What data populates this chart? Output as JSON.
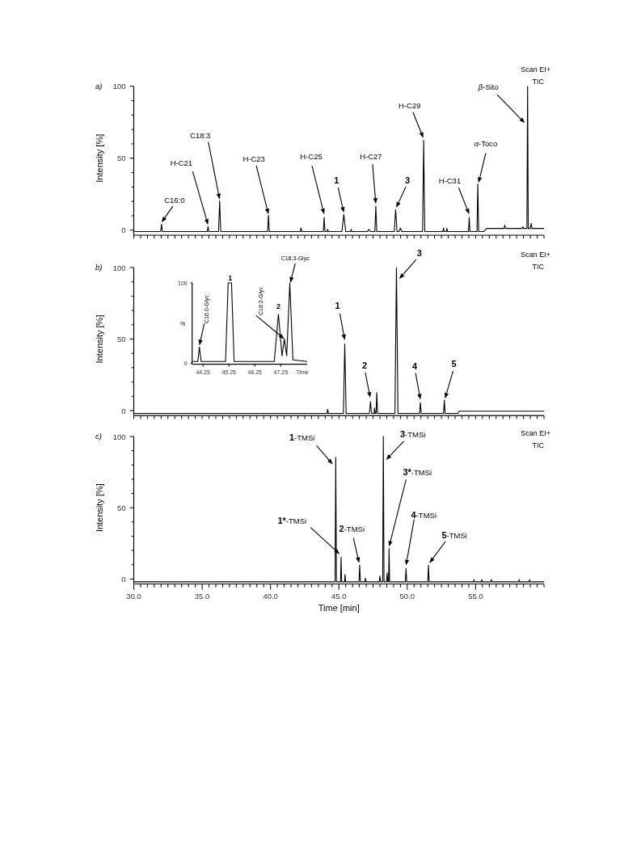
{
  "chart_data": [
    {
      "type": "line",
      "title": "a)",
      "ylabel": "Intensity [%]",
      "color": "#000000",
      "tick_labels": "y",
      "grid": false,
      "xlim": [
        30,
        60
      ],
      "ylim": [
        -3.5,
        100
      ],
      "xticks": [
        {
          "value": 30,
          "label": null
        },
        {
          "value": 30.5,
          "label": null
        },
        {
          "value": 31,
          "label": null
        },
        {
          "value": 31.5,
          "label": null
        },
        {
          "value": 32,
          "label": null
        },
        {
          "value": 32.5,
          "label": null
        },
        {
          "value": 33,
          "label": null
        },
        {
          "value": 33.5,
          "label": null
        },
        {
          "value": 34,
          "label": null
        },
        {
          "value": 34.5,
          "label": null
        },
        {
          "value": 35,
          "label": null
        },
        {
          "value": 35.5,
          "label": null
        },
        {
          "value": 36,
          "label": null
        },
        {
          "value": 36.5,
          "label": null
        },
        {
          "value": 37,
          "label": null
        },
        {
          "value": 37.5,
          "label": null
        },
        {
          "value": 38,
          "label": null
        },
        {
          "value": 38.5,
          "label": null
        },
        {
          "value": 39,
          "label": null
        },
        {
          "value": 39.5,
          "label": null
        },
        {
          "value": 40,
          "label": null
        },
        {
          "value": 40.5,
          "label": null
        },
        {
          "value": 41,
          "label": null
        },
        {
          "value": 41.5,
          "label": null
        },
        {
          "value": 42,
          "label": null
        },
        {
          "value": 42.5,
          "label": null
        },
        {
          "value": 43,
          "label": null
        },
        {
          "value": 43.5,
          "label": null
        },
        {
          "value": 44,
          "label": null
        },
        {
          "value": 44.5,
          "label": null
        },
        {
          "value": 45,
          "label": null
        },
        {
          "value": 45.5,
          "label": null
        },
        {
          "value": 46,
          "label": null
        },
        {
          "value": 46.5,
          "label": null
        },
        {
          "value": 47,
          "label": null
        },
        {
          "value": 47.5,
          "label": null
        },
        {
          "value": 48,
          "label": null
        },
        {
          "value": 48.5,
          "label": null
        },
        {
          "value": 49,
          "label": null
        },
        {
          "value": 49.5,
          "label": null
        },
        {
          "value": 50,
          "label": null
        },
        {
          "value": 50.5,
          "label": null
        },
        {
          "value": 51,
          "label": null
        },
        {
          "value": 51.5,
          "label": null
        },
        {
          "value": 52,
          "label": null
        },
        {
          "value": 52.5,
          "label": null
        },
        {
          "value": 53,
          "label": null
        },
        {
          "value": 53.5,
          "label": null
        },
        {
          "value": 54,
          "label": null
        },
        {
          "value": 54.5,
          "label": null
        },
        {
          "value": 55,
          "label": null
        },
        {
          "value": 55.5,
          "label": null
        },
        {
          "value": 56,
          "label": null
        },
        {
          "value": 56.5,
          "label": null
        },
        {
          "value": 57,
          "label": null
        },
        {
          "value": 57.5,
          "label": null
        },
        {
          "value": 58,
          "label": null
        },
        {
          "value": 58.5,
          "label": null
        },
        {
          "value": 59,
          "label": null
        },
        {
          "value": 59.5,
          "label": null
        },
        {
          "value": 60,
          "label": null
        }
      ],
      "yticks": [
        0,
        {
          "value": 10,
          "label": null
        },
        {
          "value": 20,
          "label": null
        },
        {
          "value": 30,
          "label": null
        },
        {
          "value": 40,
          "label": null
        },
        50,
        {
          "value": 60,
          "label": null
        },
        {
          "value": 70,
          "label": null
        },
        {
          "value": 80,
          "label": null
        },
        {
          "value": 90,
          "label": null
        },
        100
      ],
      "x": [
        30,
        31.97,
        32.03,
        32.09,
        35.38,
        35.43,
        35.48,
        36.2,
        36.28,
        36.36,
        39.79,
        39.85,
        39.91,
        42.18,
        42.23,
        42.28,
        43.86,
        43.92,
        43.98,
        44.13,
        44.18,
        44.23,
        45.22,
        45.36,
        45.5,
        45.85,
        45.9,
        45.95,
        47.1,
        47.18,
        47.3,
        47.63,
        47.7,
        47.77,
        49.05,
        49.15,
        49.25,
        49.4,
        49.5,
        49.6,
        51.12,
        51.2,
        51.28,
        52.6,
        52.65,
        52.7,
        52.85,
        52.9,
        52.95,
        54.48,
        54.53,
        54.58,
        55.1,
        55.16,
        55.22,
        55.6,
        55.8,
        57.08,
        57.13,
        57.18,
        58.4,
        58.45,
        58.5,
        58.75,
        58.8,
        58.85,
        59,
        59.06,
        59.12,
        60
      ],
      "values": [
        -1,
        -1,
        4.2,
        -1,
        -1,
        2.7,
        -1,
        -1,
        20.4,
        -1,
        -1,
        10.4,
        -1,
        -1,
        1.7,
        -1,
        -1,
        8.9,
        -1,
        -1,
        0.6,
        -1,
        -1,
        11,
        -1,
        -1,
        0.6,
        -1,
        -1,
        0.6,
        -1,
        -1,
        16.8,
        -1,
        -1,
        14.3,
        -1,
        -1,
        1.5,
        -1,
        -1,
        62.4,
        -1,
        -1,
        1.5,
        -1,
        -1,
        1.2,
        -1,
        -1,
        8.9,
        -1,
        -1,
        32.2,
        -1,
        -1,
        1.2,
        1.2,
        3.5,
        1.2,
        1.2,
        2.5,
        1.2,
        1.2,
        100,
        1.2,
        1.2,
        4.8,
        1.2,
        1.2
      ],
      "annotations": [
        "Scan EI+",
        "TIC",
        {
          "text": "C16:0",
          "x": 32.03,
          "y": 5.4
        },
        {
          "text": "H-C21",
          "x": 35.43,
          "y": 3.7
        },
        {
          "text": "C18:3",
          "x": 36.28,
          "y": 21.4
        },
        {
          "text": "H-C23",
          "x": 39.85,
          "y": 11
        },
        {
          "text": "H-C25",
          "x": 43.92,
          "y": 11
        },
        {
          "text": "1",
          "x": 45.36,
          "y": 12.1
        },
        {
          "text": "H-C27",
          "x": 47.7,
          "y": 18.3
        },
        {
          "text": "3",
          "x": 49.19,
          "y": 15.6
        },
        {
          "text": "H-C29",
          "x": 51.18,
          "y": 64
        },
        {
          "text": "H-C31",
          "x": 54.53,
          "y": 11
        },
        {
          "text": "α-Toco",
          "x": 55.21,
          "y": 32.8
        },
        {
          "text": "β-Sito",
          "x": 58.6,
          "y": 74.4
        }
      ]
    },
    {
      "type": "line",
      "title": "b)",
      "ylabel": "Intensity [%]",
      "color": "#000000",
      "tick_labels": "y",
      "grid": false,
      "xlim": [
        30,
        60
      ],
      "ylim": [
        -3.5,
        100
      ],
      "xticks": [
        {
          "value": 30,
          "label": null
        },
        {
          "value": 30.5,
          "label": null
        },
        {
          "value": 31,
          "label": null
        },
        {
          "value": 31.5,
          "label": null
        },
        {
          "value": 32,
          "label": null
        },
        {
          "value": 32.5,
          "label": null
        },
        {
          "value": 33,
          "label": null
        },
        {
          "value": 33.5,
          "label": null
        },
        {
          "value": 34,
          "label": null
        },
        {
          "value": 34.5,
          "label": null
        },
        {
          "value": 35,
          "label": null
        },
        {
          "value": 35.5,
          "label": null
        },
        {
          "value": 36,
          "label": null
        },
        {
          "value": 36.5,
          "label": null
        },
        {
          "value": 37,
          "label": null
        },
        {
          "value": 37.5,
          "label": null
        },
        {
          "value": 38,
          "label": null
        },
        {
          "value": 38.5,
          "label": null
        },
        {
          "value": 39,
          "label": null
        },
        {
          "value": 39.5,
          "label": null
        },
        {
          "value": 40,
          "label": null
        },
        {
          "value": 40.5,
          "label": null
        },
        {
          "value": 41,
          "label": null
        },
        {
          "value": 41.5,
          "label": null
        },
        {
          "value": 42,
          "label": null
        },
        {
          "value": 42.5,
          "label": null
        },
        {
          "value": 43,
          "label": null
        },
        {
          "value": 43.5,
          "label": null
        },
        {
          "value": 44,
          "label": null
        },
        {
          "value": 44.5,
          "label": null
        },
        {
          "value": 45,
          "label": null
        },
        {
          "value": 45.5,
          "label": null
        },
        {
          "value": 46,
          "label": null
        },
        {
          "value": 46.5,
          "label": null
        },
        {
          "value": 47,
          "label": null
        },
        {
          "value": 47.5,
          "label": null
        },
        {
          "value": 48,
          "label": null
        },
        {
          "value": 48.5,
          "label": null
        },
        {
          "value": 49,
          "label": null
        },
        {
          "value": 49.5,
          "label": null
        },
        {
          "value": 50,
          "label": null
        },
        {
          "value": 50.5,
          "label": null
        },
        {
          "value": 51,
          "label": null
        },
        {
          "value": 51.5,
          "label": null
        },
        {
          "value": 52,
          "label": null
        },
        {
          "value": 52.5,
          "label": null
        },
        {
          "value": 53,
          "label": null
        },
        {
          "value": 53.5,
          "label": null
        },
        {
          "value": 54,
          "label": null
        },
        {
          "value": 54.5,
          "label": null
        },
        {
          "value": 55,
          "label": null
        },
        {
          "value": 55.5,
          "label": null
        },
        {
          "value": 56,
          "label": null
        },
        {
          "value": 56.5,
          "label": null
        },
        {
          "value": 57,
          "label": null
        },
        {
          "value": 57.5,
          "label": null
        },
        {
          "value": 58,
          "label": null
        },
        {
          "value": 58.5,
          "label": null
        },
        {
          "value": 59,
          "label": null
        },
        {
          "value": 59.5,
          "label": null
        },
        {
          "value": 60,
          "label": null
        }
      ],
      "yticks": [
        0,
        {
          "value": 10,
          "label": null
        },
        {
          "value": 20,
          "label": null
        },
        {
          "value": 30,
          "label": null
        },
        {
          "value": 40,
          "label": null
        },
        50,
        {
          "value": 60,
          "label": null
        },
        {
          "value": 70,
          "label": null
        },
        {
          "value": 80,
          "label": null
        },
        {
          "value": 90,
          "label": null
        },
        100
      ],
      "x": [
        30,
        44.13,
        44.18,
        44.23,
        45.33,
        45.43,
        45.53,
        47.23,
        47.31,
        47.39,
        47.57,
        47.61,
        47.65,
        47.72,
        47.77,
        47.83,
        49.1,
        49.21,
        49.32,
        50.9,
        50.96,
        51.02,
        52.65,
        52.71,
        52.77,
        53.7,
        53.8,
        60
      ],
      "values": [
        -2,
        -2,
        1,
        -2,
        -2,
        46.6,
        -2,
        -2,
        6.3,
        -2,
        -2,
        2,
        -2,
        -2,
        12.6,
        -2,
        -2,
        100,
        -2,
        -2,
        5.6,
        -2,
        -2,
        7.3,
        -2,
        -2,
        -0.4,
        -0.4
      ],
      "annotations": [
        "Scan EI+",
        "TIC",
        {
          "text": "1",
          "x": 45.43,
          "y": 49.2
        },
        {
          "text": "2",
          "x": 47.29,
          "y": 9
        },
        {
          "text": "3",
          "x": 49.41,
          "y": 92
        },
        {
          "text": "4",
          "x": 50.96,
          "y": 7.7
        },
        {
          "text": "5",
          "x": 52.76,
          "y": 8.4
        }
      ]
    },
    {
      "type": "line",
      "xlabel": "Time",
      "ylabel": "%",
      "color": "#000000",
      "grid": false,
      "xlim": [
        43.83,
        48.27
      ],
      "ylim": [
        -1.5,
        100
      ],
      "xticks": [
        44.25,
        45.25,
        46.25,
        47.25
      ],
      "yticks": [
        0,
        100
      ],
      "x": [
        43.85,
        44.05,
        44.11,
        44.18,
        45.12,
        45.22,
        45.35,
        45.45,
        47,
        47.16,
        47.3,
        47.39,
        47.48,
        47.6,
        47.72,
        48.27
      ],
      "values": [
        2,
        2,
        20,
        2,
        2,
        100,
        100,
        2,
        2,
        61,
        9,
        30,
        9,
        100,
        4,
        2
      ],
      "annotations": [
        {
          "text": "C16:0-Glyc",
          "x": 44.11,
          "y": 22
        },
        {
          "text": "1",
          "x": 45.3,
          "y": 100
        },
        {
          "text": "C18:2-Glyc",
          "x": 47.39,
          "y": 30
        },
        {
          "text": "2",
          "x": 47.16,
          "y": 61
        },
        {
          "text": "C18:3-Glyc",
          "x": 47.62,
          "y": 100
        }
      ]
    },
    {
      "type": "line",
      "title": "c)",
      "xlabel": "Time [min]",
      "ylabel": "Intensity [%]",
      "color": "#000000",
      "grid": false,
      "xlim": [
        30,
        60
      ],
      "ylim": [
        -3.5,
        100
      ],
      "xticks": [
        {
          "value": 30,
          "label": "30.0"
        },
        {
          "value": 30.5,
          "label": null
        },
        {
          "value": 31,
          "label": null
        },
        {
          "value": 31.5,
          "label": null
        },
        {
          "value": 32,
          "label": null
        },
        {
          "value": 32.5,
          "label": null
        },
        {
          "value": 33,
          "label": null
        },
        {
          "value": 33.5,
          "label": null
        },
        {
          "value": 34,
          "label": null
        },
        {
          "value": 34.5,
          "label": null
        },
        {
          "value": 35,
          "label": "35.0"
        },
        {
          "value": 35.5,
          "label": null
        },
        {
          "value": 36,
          "label": null
        },
        {
          "value": 36.5,
          "label": null
        },
        {
          "value": 37,
          "label": null
        },
        {
          "value": 37.5,
          "label": null
        },
        {
          "value": 38,
          "label": null
        },
        {
          "value": 38.5,
          "label": null
        },
        {
          "value": 39,
          "label": null
        },
        {
          "value": 39.5,
          "label": null
        },
        {
          "value": 40,
          "label": "40.0"
        },
        {
          "value": 40.5,
          "label": null
        },
        {
          "value": 41,
          "label": null
        },
        {
          "value": 41.5,
          "label": null
        },
        {
          "value": 42,
          "label": null
        },
        {
          "value": 42.5,
          "label": null
        },
        {
          "value": 43,
          "label": null
        },
        {
          "value": 43.5,
          "label": null
        },
        {
          "value": 44,
          "label": null
        },
        {
          "value": 44.5,
          "label": null
        },
        {
          "value": 45,
          "label": "45.0"
        },
        {
          "value": 45.5,
          "label": null
        },
        {
          "value": 46,
          "label": null
        },
        {
          "value": 46.5,
          "label": null
        },
        {
          "value": 47,
          "label": null
        },
        {
          "value": 47.5,
          "label": null
        },
        {
          "value": 48,
          "label": null
        },
        {
          "value": 48.5,
          "label": null
        },
        {
          "value": 49,
          "label": null
        },
        {
          "value": 49.5,
          "label": null
        },
        {
          "value": 50,
          "label": "50.0"
        },
        {
          "value": 50.5,
          "label": null
        },
        {
          "value": 51,
          "label": null
        },
        {
          "value": 51.5,
          "label": null
        },
        {
          "value": 52,
          "label": null
        },
        {
          "value": 52.5,
          "label": null
        },
        {
          "value": 53,
          "label": null
        },
        {
          "value": 53.5,
          "label": null
        },
        {
          "value": 54,
          "label": null
        },
        {
          "value": 54.5,
          "label": null
        },
        {
          "value": 55,
          "label": "55.0"
        },
        {
          "value": 55.5,
          "label": null
        },
        {
          "value": 56,
          "label": null
        },
        {
          "value": 56.5,
          "label": null
        },
        {
          "value": 57,
          "label": null
        },
        {
          "value": 57.5,
          "label": null
        },
        {
          "value": 58,
          "label": null
        },
        {
          "value": 58.5,
          "label": null
        },
        {
          "value": 59,
          "label": null
        },
        {
          "value": 59.5,
          "label": null
        },
        {
          "value": 60,
          "label": null
        }
      ],
      "yticks": [
        0,
        {
          "value": 10,
          "label": null
        },
        {
          "value": 20,
          "label": null
        },
        {
          "value": 30,
          "label": null
        },
        {
          "value": 40,
          "label": null
        },
        50,
        {
          "value": 60,
          "label": null
        },
        {
          "value": 70,
          "label": null
        },
        {
          "value": 80,
          "label": null
        },
        {
          "value": 90,
          "label": null
        },
        100
      ],
      "x": [
        30,
        44.72,
        44.77,
        44.82,
        45.12,
        45.16,
        45.2,
        45.41,
        45.45,
        45.49,
        46.47,
        46.52,
        46.57,
        46.9,
        46.94,
        46.98,
        47.95,
        48,
        48.05,
        48.2,
        48.25,
        48.3,
        48.48,
        48.53,
        48.58,
        48.63,
        48.67,
        48.71,
        49.86,
        49.91,
        49.96,
        51.5,
        51.55,
        51.6,
        54.84,
        54.88,
        54.92,
        55.41,
        55.45,
        55.49,
        56.11,
        56.15,
        56.19,
        58.14,
        58.18,
        58.22,
        58.91,
        58.95,
        58.99,
        60
      ],
      "values": [
        -2,
        -2,
        85.3,
        -2,
        -2,
        15.3,
        -2,
        -2,
        3.2,
        -2,
        -2,
        9.7,
        -2,
        -2,
        0.6,
        -2,
        -2,
        2.1,
        -2,
        -2,
        100,
        -2,
        -2,
        4.2,
        -2,
        -2,
        21.4,
        -2,
        -2,
        7.4,
        -2,
        -2,
        9.7,
        -2,
        -2,
        -0.4,
        -2,
        -2,
        -0.4,
        -2,
        -2,
        -0.4,
        -2,
        -2,
        -0.4,
        -2,
        -2,
        -0.4,
        -2,
        -2
      ],
      "annotations": [
        "Scan EI+",
        "TIC",
        {
          "text": "1-TMSi",
          "x": 44.55,
          "y": 80.5
        },
        {
          "text": "1*-TMSi",
          "x": 45.06,
          "y": 17.4
        },
        {
          "text": "2-TMSi",
          "x": 46.48,
          "y": 11.1
        },
        {
          "text": "3-TMSi",
          "x": 48.45,
          "y": 83.6
        },
        {
          "text": "3*-TMSi",
          "x": 48.67,
          "y": 22.7
        },
        {
          "text": "4-TMSi",
          "x": 49.91,
          "y": 9.5
        },
        {
          "text": "5-TMSi",
          "x": 51.62,
          "y": 11.1
        }
      ]
    }
  ]
}
